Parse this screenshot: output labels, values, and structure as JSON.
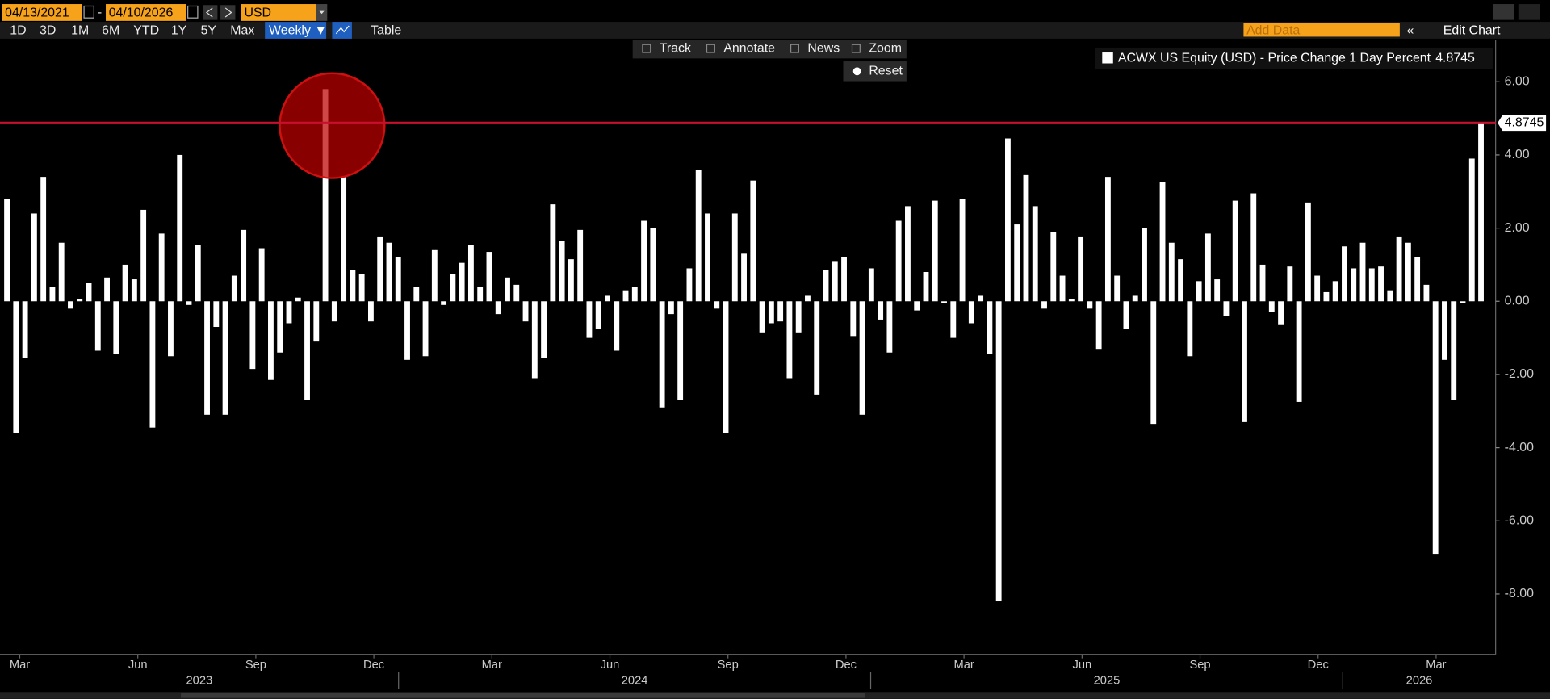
{
  "toolbar": {
    "start_date": "04/13/2021",
    "separator": "-",
    "end_date": "04/10/2026",
    "currency": "USD",
    "ranges": [
      "1D",
      "3D",
      "1M",
      "6M",
      "YTD",
      "1Y",
      "5Y",
      "Max"
    ],
    "frequency": "Weekly ▼",
    "table": "Table",
    "add_data": "Add Data",
    "edit_chart": "Edit Chart",
    "tools": [
      "Track",
      "Annotate",
      "News",
      "Zoom"
    ],
    "reset": "Reset"
  },
  "chart_data": {
    "type": "bar",
    "series": [
      {
        "name": "ACWX US Equity (USD) - Price Change 1 Day Percent",
        "color": "#ffffff",
        "values": [
          2.8,
          -3.6,
          -1.55,
          2.4,
          3.4,
          0.4,
          1.6,
          -0.2,
          0.05,
          0.5,
          -1.35,
          0.65,
          -1.45,
          1.0,
          0.6,
          2.5,
          -3.45,
          1.85,
          -1.5,
          4.0,
          -0.1,
          1.55,
          -3.1,
          -0.7,
          -3.1,
          0.7,
          1.95,
          -1.85,
          1.45,
          -2.15,
          -1.4,
          -0.6,
          0.1,
          -2.7,
          -1.1,
          5.8,
          -0.55,
          3.4,
          0.85,
          0.75,
          -0.55,
          1.75,
          1.6,
          1.2,
          -1.6,
          0.4,
          -1.5,
          1.4,
          -0.1,
          0.75,
          1.05,
          1.55,
          0.4,
          1.35,
          -0.35,
          0.65,
          0.45,
          -0.55,
          -2.1,
          -1.55,
          2.65,
          1.65,
          1.15,
          1.95,
          -1.0,
          -0.75,
          0.15,
          -1.35,
          0.3,
          0.4,
          2.2,
          2.0,
          -2.9,
          -0.35,
          -2.7,
          0.9,
          3.6,
          2.4,
          -0.2,
          -3.6,
          2.4,
          1.3,
          3.3,
          -0.85,
          -0.6,
          -0.55,
          -2.1,
          -0.85,
          0.15,
          -2.55,
          0.85,
          1.1,
          1.2,
          -0.95,
          -3.1,
          0.9,
          -0.5,
          -1.4,
          2.2,
          2.6,
          -0.25,
          0.8,
          2.75,
          -0.05,
          -1.0,
          2.8,
          -0.6,
          0.15,
          -1.45,
          -8.2,
          4.45,
          2.1,
          3.45,
          2.6,
          -0.2,
          1.9,
          0.7,
          0.05,
          1.75,
          -0.2,
          -1.3,
          3.4,
          0.7,
          -0.75,
          0.15,
          2.0,
          -3.35,
          3.25,
          1.6,
          1.15,
          -1.5,
          0.55,
          1.85,
          0.6,
          -0.4,
          2.75,
          -3.3,
          2.95,
          1.0,
          -0.3,
          -0.65,
          0.95,
          -2.75,
          2.7,
          0.7,
          0.25,
          0.55,
          1.5,
          0.9,
          1.6,
          0.9,
          0.95,
          0.3,
          1.75,
          1.6,
          1.2,
          0.45,
          -6.9,
          -1.6,
          -2.7,
          -0.05,
          3.9,
          4.8745
        ]
      }
    ],
    "ylim": [
      -9.65,
      7.15
    ],
    "yticks": [
      {
        "value": 6,
        "label": "6.00"
      },
      {
        "value": 4,
        "label": "4.00"
      },
      {
        "value": 2,
        "label": "2.00"
      },
      {
        "value": 0,
        "label": "0.00"
      },
      {
        "value": -2,
        "label": "-2.00"
      },
      {
        "value": -4,
        "label": "-4.00"
      },
      {
        "value": -6,
        "label": "-6.00"
      },
      {
        "value": -8,
        "label": "-8.00"
      }
    ],
    "months": [
      "Mar",
      "Jun",
      "Sep",
      "Dec",
      "Mar",
      "Jun",
      "Sep",
      "Dec",
      "Mar",
      "Jun",
      "Sep",
      "Dec",
      "Mar"
    ],
    "years": [
      "2023",
      "2024",
      "2025",
      "2026"
    ],
    "reference_line_color": "#c8102e"
  }
}
